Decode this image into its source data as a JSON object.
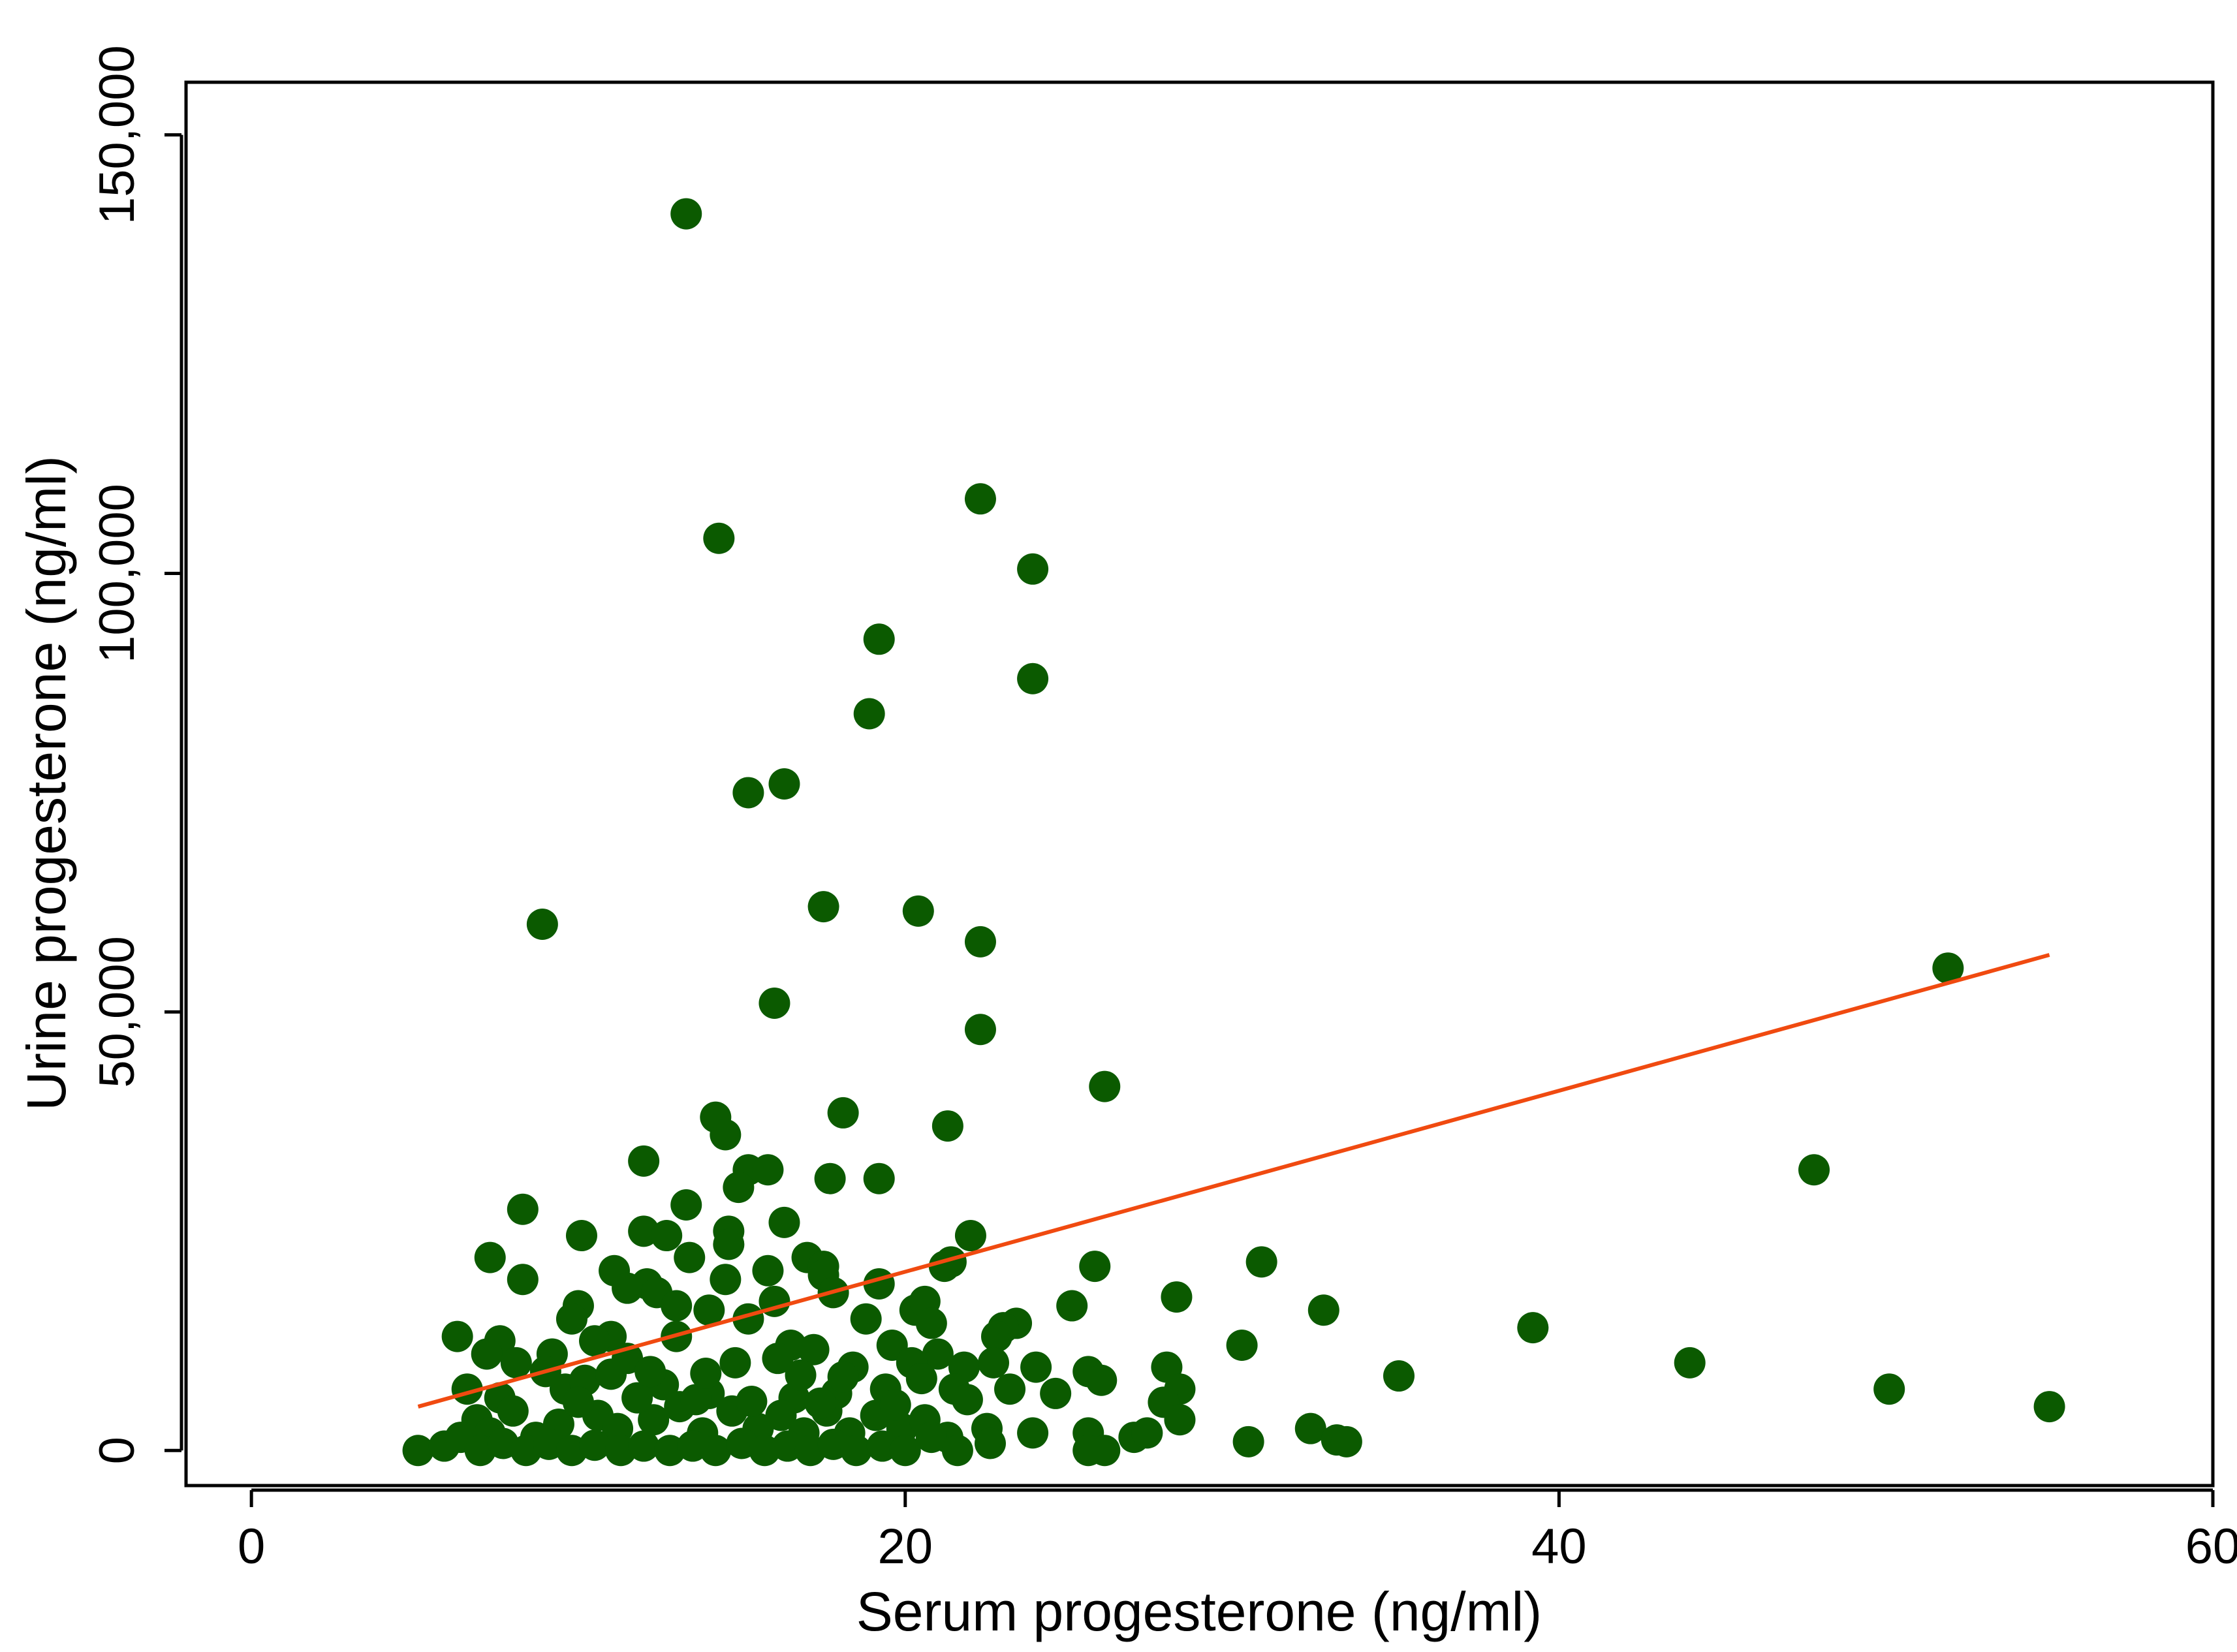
{
  "chart_data": {
    "type": "scatter",
    "title": "",
    "xlabel": "Serum progesterone (ng/ml)",
    "ylabel": "Urine progesterone (ng/ml)",
    "xlim": [
      -2,
      60
    ],
    "ylim": [
      -4000,
      156000
    ],
    "x_ticks": [
      0,
      20,
      40,
      60
    ],
    "x_tick_labels": [
      "0",
      "20",
      "40",
      "60"
    ],
    "y_ticks": [
      0,
      50000,
      100000,
      150000
    ],
    "y_tick_labels": [
      "0",
      "50,000",
      "100,000",
      "150,000"
    ],
    "grid": false,
    "legend": "none",
    "colors": {
      "points": "#0b5a00",
      "fit_line": "#f04a10",
      "axis": "#000000"
    },
    "series": [
      {
        "kind": "points",
        "points": [
          [
            13.3,
            141000
          ],
          [
            22.3,
            108500
          ],
          [
            14.3,
            104000
          ],
          [
            23.9,
            100500
          ],
          [
            19.2,
            92500
          ],
          [
            23.9,
            88000
          ],
          [
            18.9,
            84000
          ],
          [
            16.3,
            76000
          ],
          [
            15.2,
            75000
          ],
          [
            17.5,
            62000
          ],
          [
            20.4,
            61500
          ],
          [
            8.9,
            60000
          ],
          [
            22.3,
            58000
          ],
          [
            16.0,
            51000
          ],
          [
            22.3,
            48000
          ],
          [
            51.9,
            55000
          ],
          [
            26.1,
            41500
          ],
          [
            14.2,
            38000
          ],
          [
            18.1,
            38500
          ],
          [
            14.5,
            36000
          ],
          [
            21.3,
            37000
          ],
          [
            12.0,
            33000
          ],
          [
            15.2,
            32000
          ],
          [
            15.8,
            32000
          ],
          [
            17.7,
            31000
          ],
          [
            19.2,
            31000
          ],
          [
            47.8,
            32000
          ],
          [
            8.3,
            27500
          ],
          [
            13.3,
            28000
          ],
          [
            14.9,
            30000
          ],
          [
            16.3,
            26000
          ],
          [
            10.1,
            24500
          ],
          [
            12.0,
            25000
          ],
          [
            12.7,
            24500
          ],
          [
            14.6,
            25000
          ],
          [
            14.6,
            23500
          ],
          [
            22.0,
            24500
          ],
          [
            7.3,
            22000
          ],
          [
            13.4,
            22000
          ],
          [
            17.0,
            22000
          ],
          [
            17.5,
            21000
          ],
          [
            21.2,
            21000
          ],
          [
            21.4,
            21500
          ],
          [
            25.8,
            21000
          ],
          [
            30.9,
            21500
          ],
          [
            8.3,
            19500
          ],
          [
            11.1,
            20500
          ],
          [
            12.1,
            19000
          ],
          [
            14.5,
            19500
          ],
          [
            15.8,
            20500
          ],
          [
            17.5,
            20000
          ],
          [
            17.8,
            18000
          ],
          [
            19.2,
            19000
          ],
          [
            11.5,
            18500
          ],
          [
            12.4,
            18000
          ],
          [
            16.0,
            17000
          ],
          [
            20.3,
            16000
          ],
          [
            20.6,
            17000
          ],
          [
            25.1,
            16500
          ],
          [
            28.3,
            17500
          ],
          [
            32.8,
            16000
          ],
          [
            10.0,
            16500
          ],
          [
            13.0,
            16500
          ],
          [
            14.0,
            16000
          ],
          [
            9.8,
            15000
          ],
          [
            15.2,
            15000
          ],
          [
            18.8,
            15000
          ],
          [
            20.8,
            14500
          ],
          [
            23.4,
            14500
          ],
          [
            23.0,
            14000
          ],
          [
            22.8,
            13000
          ],
          [
            6.3,
            13000
          ],
          [
            7.6,
            12500
          ],
          [
            11.0,
            13000
          ],
          [
            10.5,
            12500
          ],
          [
            13.0,
            13000
          ],
          [
            16.5,
            12000
          ],
          [
            17.2,
            11500
          ],
          [
            19.6,
            12000
          ],
          [
            21.0,
            11000
          ],
          [
            30.3,
            12000
          ],
          [
            39.2,
            14000
          ],
          [
            7.2,
            11000
          ],
          [
            8.1,
            10000
          ],
          [
            9.2,
            11000
          ],
          [
            11.5,
            10500
          ],
          [
            14.8,
            10000
          ],
          [
            16.1,
            10500
          ],
          [
            18.4,
            9500
          ],
          [
            20.2,
            10000
          ],
          [
            21.8,
            9500
          ],
          [
            22.7,
            10000
          ],
          [
            24.0,
            9500
          ],
          [
            25.6,
            9000
          ],
          [
            28.0,
            9500
          ],
          [
            44.0,
            10000
          ],
          [
            35.1,
            8500
          ],
          [
            26.0,
            8000
          ],
          [
            23.2,
            7000
          ],
          [
            24.6,
            6500
          ],
          [
            28.4,
            7000
          ],
          [
            27.9,
            5500
          ],
          [
            50.1,
            7000
          ],
          [
            55.0,
            5000
          ],
          [
            6.6,
            7000
          ],
          [
            7.6,
            6000
          ],
          [
            9.6,
            7000
          ],
          [
            10.2,
            8000
          ],
          [
            12.6,
            7500
          ],
          [
            14.0,
            6500
          ],
          [
            16.6,
            6000
          ],
          [
            17.9,
            6500
          ],
          [
            19.4,
            7000
          ],
          [
            21.5,
            7000
          ],
          [
            6.9,
            3500
          ],
          [
            7.3,
            2000
          ],
          [
            8.0,
            4500
          ],
          [
            8.7,
            1500
          ],
          [
            9.4,
            3000
          ],
          [
            10.6,
            4000
          ],
          [
            11.2,
            2500
          ],
          [
            12.3,
            3500
          ],
          [
            13.1,
            5000
          ],
          [
            13.8,
            2000
          ],
          [
            14.7,
            4500
          ],
          [
            15.5,
            2500
          ],
          [
            16.2,
            4000
          ],
          [
            16.9,
            2000
          ],
          [
            17.6,
            4500
          ],
          [
            18.3,
            2000
          ],
          [
            19.1,
            4000
          ],
          [
            19.9,
            2500
          ],
          [
            20.6,
            3500
          ],
          [
            21.3,
            1500
          ],
          [
            22.5,
            2500
          ],
          [
            23.9,
            2000
          ],
          [
            25.6,
            2000
          ],
          [
            27.0,
            1500
          ],
          [
            27.4,
            2000
          ],
          [
            28.4,
            3500
          ],
          [
            30.5,
            1000
          ],
          [
            32.4,
            2500
          ],
          [
            33.2,
            1200
          ],
          [
            33.5,
            1000
          ],
          [
            5.1,
            0
          ],
          [
            5.9,
            500
          ],
          [
            6.4,
            1500
          ],
          [
            7.0,
            0
          ],
          [
            7.7,
            800
          ],
          [
            8.4,
            0
          ],
          [
            9.1,
            700
          ],
          [
            9.8,
            0
          ],
          [
            10.5,
            600
          ],
          [
            11.3,
            0
          ],
          [
            12.0,
            500
          ],
          [
            12.8,
            0
          ],
          [
            13.5,
            500
          ],
          [
            14.2,
            0
          ],
          [
            15.0,
            800
          ],
          [
            15.7,
            0
          ],
          [
            16.4,
            500
          ],
          [
            17.1,
            0
          ],
          [
            17.8,
            700
          ],
          [
            18.5,
            0
          ],
          [
            19.3,
            500
          ],
          [
            20.0,
            0
          ],
          [
            20.8,
            1500
          ],
          [
            21.6,
            0
          ],
          [
            22.6,
            800
          ],
          [
            25.6,
            0
          ],
          [
            26.1,
            0
          ],
          [
            10.0,
            5500
          ],
          [
            11.8,
            6000
          ],
          [
            13.6,
            5800
          ],
          [
            15.3,
            5600
          ],
          [
            17.4,
            5400
          ],
          [
            19.7,
            5200
          ],
          [
            21.9,
            5800
          ],
          [
            12.2,
            9000
          ],
          [
            13.9,
            8800
          ],
          [
            16.8,
            8600
          ],
          [
            18.1,
            8400
          ],
          [
            20.5,
            8200
          ],
          [
            9.0,
            9000
          ],
          [
            11.0,
            8700
          ]
        ]
      },
      {
        "kind": "fit_line",
        "x": [
          5.1,
          55.0
        ],
        "y": [
          5000,
          56500
        ]
      }
    ]
  }
}
